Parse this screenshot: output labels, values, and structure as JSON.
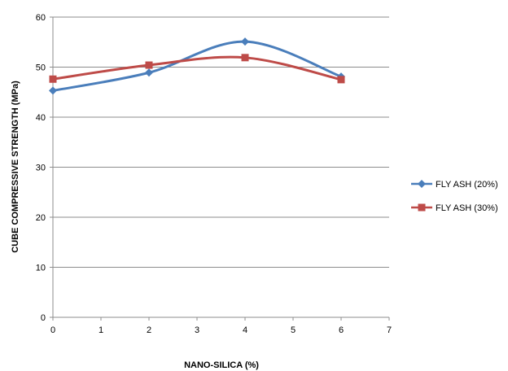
{
  "chart_data": {
    "type": "line",
    "title": "",
    "xlabel": "NANO-SILICA (%)",
    "ylabel": "CUBE COMPRESSIVE STRENGTH (MPa)",
    "xlim": [
      0,
      7
    ],
    "ylim": [
      0,
      60
    ],
    "x_ticks": [
      "0",
      "1",
      "2",
      "3",
      "4",
      "5",
      "6",
      "7"
    ],
    "y_ticks": [
      "0",
      "10",
      "20",
      "30",
      "40",
      "50",
      "60"
    ],
    "grid": "horizontal",
    "legend_position": "right",
    "smooth": true,
    "series": [
      {
        "name": "FLY ASH (20%)",
        "color": "#4a7ebb",
        "marker": "diamond",
        "x": [
          0,
          2,
          4,
          6
        ],
        "y": [
          45.3,
          48.9,
          55.1,
          48.1
        ]
      },
      {
        "name": "FLY ASH (30%)",
        "color": "#be4b48",
        "marker": "square",
        "x": [
          0,
          2,
          4,
          6
        ],
        "y": [
          47.6,
          50.4,
          51.9,
          47.5
        ]
      }
    ]
  }
}
